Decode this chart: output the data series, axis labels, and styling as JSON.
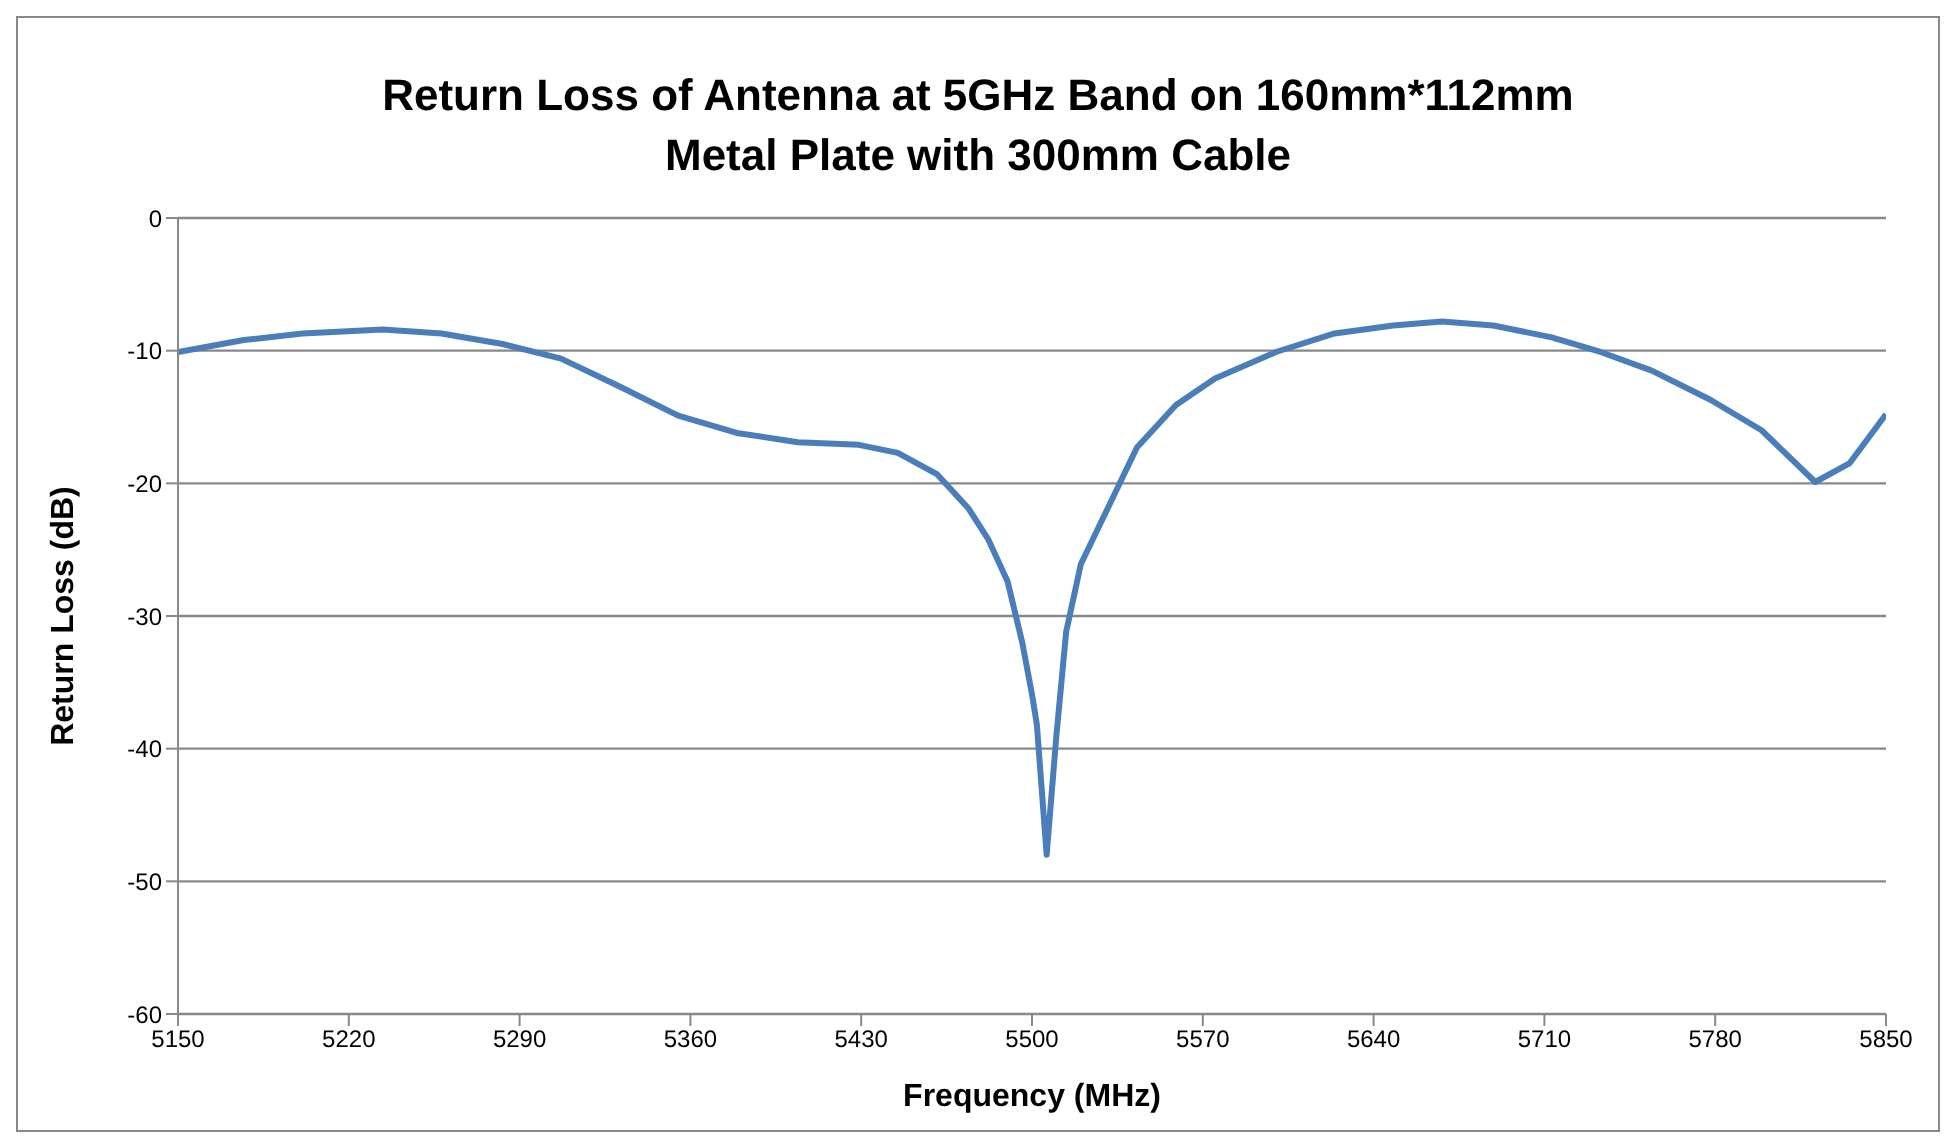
{
  "chart_data": {
    "type": "line",
    "title": "Return Loss of Antenna at 5GHz Band on 160mm*112mm Metal Plate with 300mm Cable",
    "xlabel": "Frequency  (MHz)",
    "ylabel": "Return Loss (dB)",
    "x": [
      5150,
      5177,
      5201,
      5234,
      5258,
      5283,
      5307,
      5331,
      5355,
      5379,
      5404,
      5429,
      5445,
      5461,
      5474,
      5482,
      5490,
      5496,
      5500,
      5502,
      5506,
      5510,
      5514,
      5520,
      5531,
      5543,
      5559,
      5575,
      5600,
      5624,
      5648,
      5668,
      5689,
      5713,
      5733,
      5754,
      5778,
      5799,
      5821,
      5835,
      5850
    ],
    "series": [
      {
        "color": "#4a7ebb",
        "values": [
          -10.1,
          -9.2,
          -8.7,
          -8.4,
          -8.7,
          -9.5,
          -10.6,
          -12.7,
          -14.9,
          -16.2,
          -16.9,
          -17.1,
          -17.7,
          -19.3,
          -21.9,
          -24.2,
          -27.4,
          -32,
          -35.9,
          -38.2,
          -48,
          -39,
          -31.2,
          -26.1,
          -21.9,
          -17.3,
          -14.1,
          -12.1,
          -10.1,
          -8.7,
          -8.1,
          -7.8,
          -8.1,
          -9,
          -10.1,
          -11.5,
          -13.7,
          -16,
          -19.9,
          -18.5,
          -14.8
        ]
      }
    ],
    "xlim": [
      5150,
      5850
    ],
    "xticks": [
      5150,
      5220,
      5290,
      5360,
      5430,
      5500,
      5570,
      5640,
      5710,
      5780,
      5850
    ],
    "ylim": [
      -60,
      0
    ],
    "yticks": [
      -60,
      -50,
      -40,
      -30,
      -20,
      -10,
      0
    ],
    "grid": "y",
    "legend": false,
    "marker": "none",
    "line_style": "solid"
  }
}
